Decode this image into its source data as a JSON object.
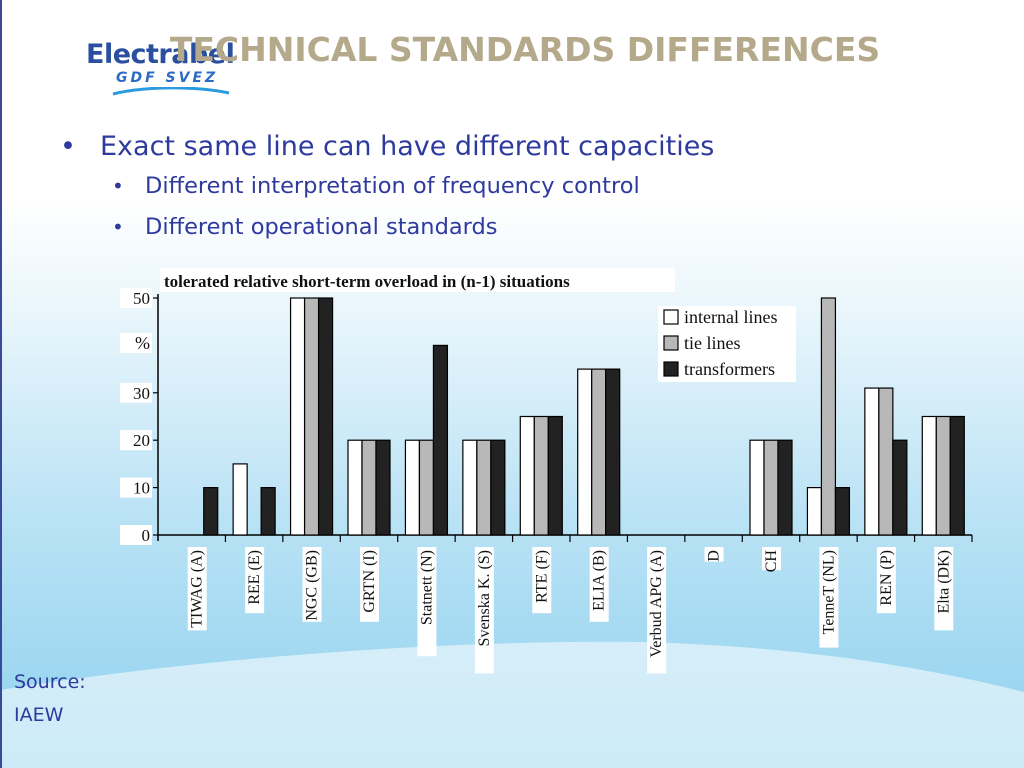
{
  "slide": {
    "title": "TECHNICAL STANDARDS DIFFERENCES",
    "logo": {
      "name": "Electrabel",
      "sub": "GDF SVEZ"
    },
    "bullets": {
      "main": "Exact same line can have different capacities",
      "sub": [
        "Different interpretation of frequency control",
        "Different operational standards"
      ]
    },
    "source": [
      "Source:",
      "IAEW"
    ]
  },
  "colors": {
    "title": "#b4a98a",
    "bullet_text": "#2e3a9e",
    "internal_lines": "#ffffff",
    "tie_lines": "#b8b8b8",
    "transformers": "#222222"
  },
  "chart_data": {
    "type": "bar",
    "title": "tolerated relative short-term overload in (n-1) situations",
    "ylabel": "%",
    "ylim": [
      0,
      50
    ],
    "yticks": [
      "0",
      "10",
      "20",
      "30",
      "50"
    ],
    "legend_position": "top-right",
    "categories": [
      "TIWAG (A)",
      "REE (E)",
      "NGC (GB)",
      "GRTN (I)",
      "Statnett (N)",
      "Svenska K. (S)",
      "RTE (F)",
      "ELIA (B)",
      "Verbud APG (A)",
      "D",
      "CH",
      "TenneT (NL)",
      "REN (P)",
      "Elta (DK)"
    ],
    "series": [
      {
        "name": "internal lines",
        "values": [
          0,
          15,
          50,
          20,
          20,
          20,
          25,
          35,
          0,
          0,
          20,
          10,
          31,
          25
        ]
      },
      {
        "name": "tie lines",
        "values": [
          0,
          0,
          50,
          20,
          20,
          20,
          25,
          35,
          0,
          0,
          20,
          50,
          31,
          25
        ]
      },
      {
        "name": "transformers",
        "values": [
          10,
          10,
          50,
          20,
          40,
          20,
          25,
          35,
          0,
          0,
          20,
          10,
          20,
          25
        ]
      }
    ]
  }
}
